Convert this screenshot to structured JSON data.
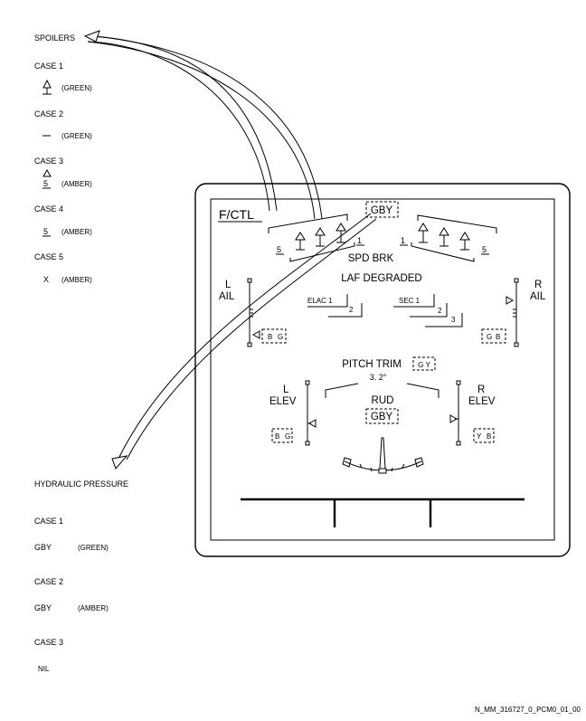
{
  "legend": {
    "spoilers": {
      "heading": "SPOILERS",
      "cases": [
        {
          "label": "CASE 1",
          "symbol": "arrow-up-bar",
          "color": "(GREEN)"
        },
        {
          "label": "CASE 2",
          "symbol": "dash",
          "color": "(GREEN)"
        },
        {
          "label": "CASE 3",
          "symbol": "arrow-up-5",
          "symbol_text": "5",
          "color": "(AMBER)"
        },
        {
          "label": "CASE 4",
          "symbol": "5",
          "symbol_text": "5",
          "color": "(AMBER)"
        },
        {
          "label": "CASE 5",
          "symbol": "X",
          "symbol_text": "X",
          "color": "(AMBER)"
        }
      ]
    },
    "hydraulic": {
      "heading": "HYDRAULIC PRESSURE",
      "cases": [
        {
          "label": "CASE 1",
          "value": "GBY",
          "color": "(GREEN)"
        },
        {
          "label": "CASE 2",
          "value": "GBY",
          "color": "(AMBER)"
        },
        {
          "label": "CASE 3",
          "value": "NIL",
          "color": ""
        }
      ]
    }
  },
  "display": {
    "title": "F/CTL",
    "hyd_top": "GBY",
    "spd_brk": "SPD BRK",
    "spoiler_left_outer": "5",
    "spoiler_left_inner": "1",
    "spoiler_right_inner": "1",
    "spoiler_right_outer": "5",
    "laf_degraded": "LAF DEGRADED",
    "l_ail_l": "L",
    "l_ail_ail": "AIL",
    "r_ail_r": "R",
    "r_ail_ail": "AIL",
    "elac1": "ELAC 1",
    "elac2": "2",
    "sec1": "SEC 1",
    "sec2": "2",
    "sec3": "3",
    "l_ail_hyd_b": "B",
    "l_ail_hyd_g": "G",
    "r_ail_hyd_g": "G",
    "r_ail_hyd_b": "B",
    "pitch_trim": "PITCH TRIM",
    "pitch_trim_hyd": "G Y",
    "pitch_trim_value": "3. 2°",
    "l_elev_l": "L",
    "l_elev_elev": "ELEV",
    "r_elev_r": "R",
    "r_elev_elev": "ELEV",
    "rud": "RUD",
    "rud_hyd": "GBY",
    "l_elev_hyd_b": "B",
    "l_elev_hyd_g": "G",
    "r_elev_hyd_y": "Y",
    "r_elev_hyd_b": "B"
  },
  "footer_ref": "N_MM_316727_0_PCM0_01_00"
}
